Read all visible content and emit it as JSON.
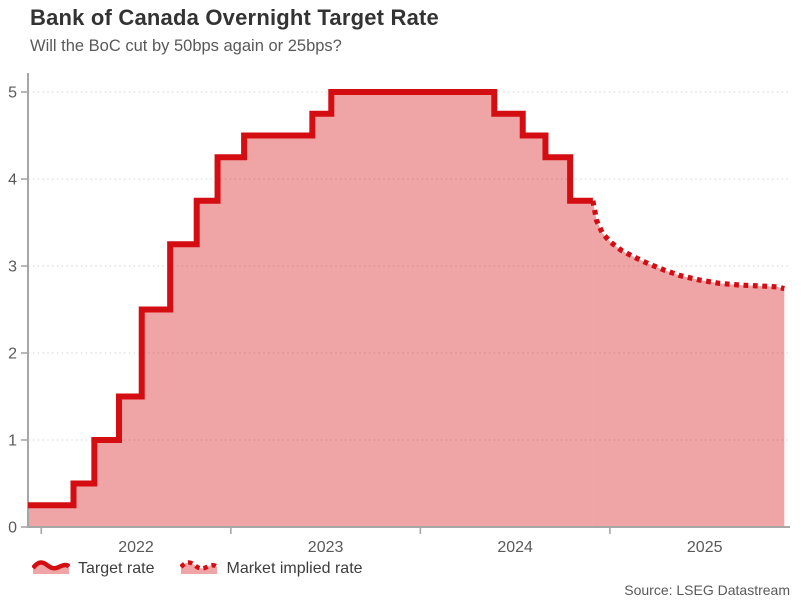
{
  "header": {
    "title": "Bank of Canada Overnight Target Rate",
    "subtitle": "Will the BoC cut by 50bps again or 25bps?"
  },
  "legend": {
    "items": [
      {
        "label": "Target rate",
        "style": "solid-area"
      },
      {
        "label": "Market implied rate",
        "style": "dotted-area"
      }
    ]
  },
  "source": "Source: LSEG Datastream",
  "colors": {
    "line_red": "#d40d12",
    "area_fill": "rgba(216,38,42,0.42)",
    "gridline": "#dedede",
    "axis": "#a6a6a6",
    "tick_label": "#595959"
  },
  "chart_data": {
    "type": "line",
    "title": "Bank of Canada Overnight Target Rate",
    "subtitle": "Will the BoC cut by 50bps again or 25bps?",
    "xlabel": "",
    "ylabel": "",
    "grid": "horizontal-dotted",
    "legend_position": "bottom-left",
    "x_axis": {
      "range": [
        2021.93,
        2025.95
      ],
      "ticks": [
        2022,
        2023,
        2024,
        2025
      ],
      "tick_label_position": "mid-year"
    },
    "y_axis": {
      "range": [
        0,
        5
      ],
      "ticks": [
        0,
        1,
        2,
        3,
        4,
        5
      ]
    },
    "series": [
      {
        "name": "Target rate",
        "mode": "step-after",
        "line": "solid",
        "fill_to_zero": true,
        "points": [
          [
            2021.93,
            0.25
          ],
          [
            2022.17,
            0.5
          ],
          [
            2022.28,
            1.0
          ],
          [
            2022.41,
            1.5
          ],
          [
            2022.53,
            2.5
          ],
          [
            2022.68,
            3.25
          ],
          [
            2022.82,
            3.75
          ],
          [
            2022.93,
            4.25
          ],
          [
            2023.07,
            4.5
          ],
          [
            2023.43,
            4.75
          ],
          [
            2023.53,
            5.0
          ],
          [
            2024.39,
            4.75
          ],
          [
            2024.54,
            4.5
          ],
          [
            2024.66,
            4.25
          ],
          [
            2024.79,
            3.75
          ]
        ],
        "end_x": 2024.91
      },
      {
        "name": "Market implied rate",
        "mode": "line",
        "line": "dotted",
        "fill_to_zero": true,
        "points": [
          [
            2024.91,
            3.75
          ],
          [
            2024.93,
            3.52
          ],
          [
            2024.96,
            3.38
          ],
          [
            2025.0,
            3.28
          ],
          [
            2025.06,
            3.18
          ],
          [
            2025.13,
            3.1
          ],
          [
            2025.21,
            3.02
          ],
          [
            2025.29,
            2.95
          ],
          [
            2025.37,
            2.89
          ],
          [
            2025.47,
            2.84
          ],
          [
            2025.58,
            2.8
          ],
          [
            2025.69,
            2.78
          ],
          [
            2025.8,
            2.77
          ],
          [
            2025.88,
            2.76
          ],
          [
            2025.92,
            2.74
          ]
        ]
      }
    ]
  }
}
